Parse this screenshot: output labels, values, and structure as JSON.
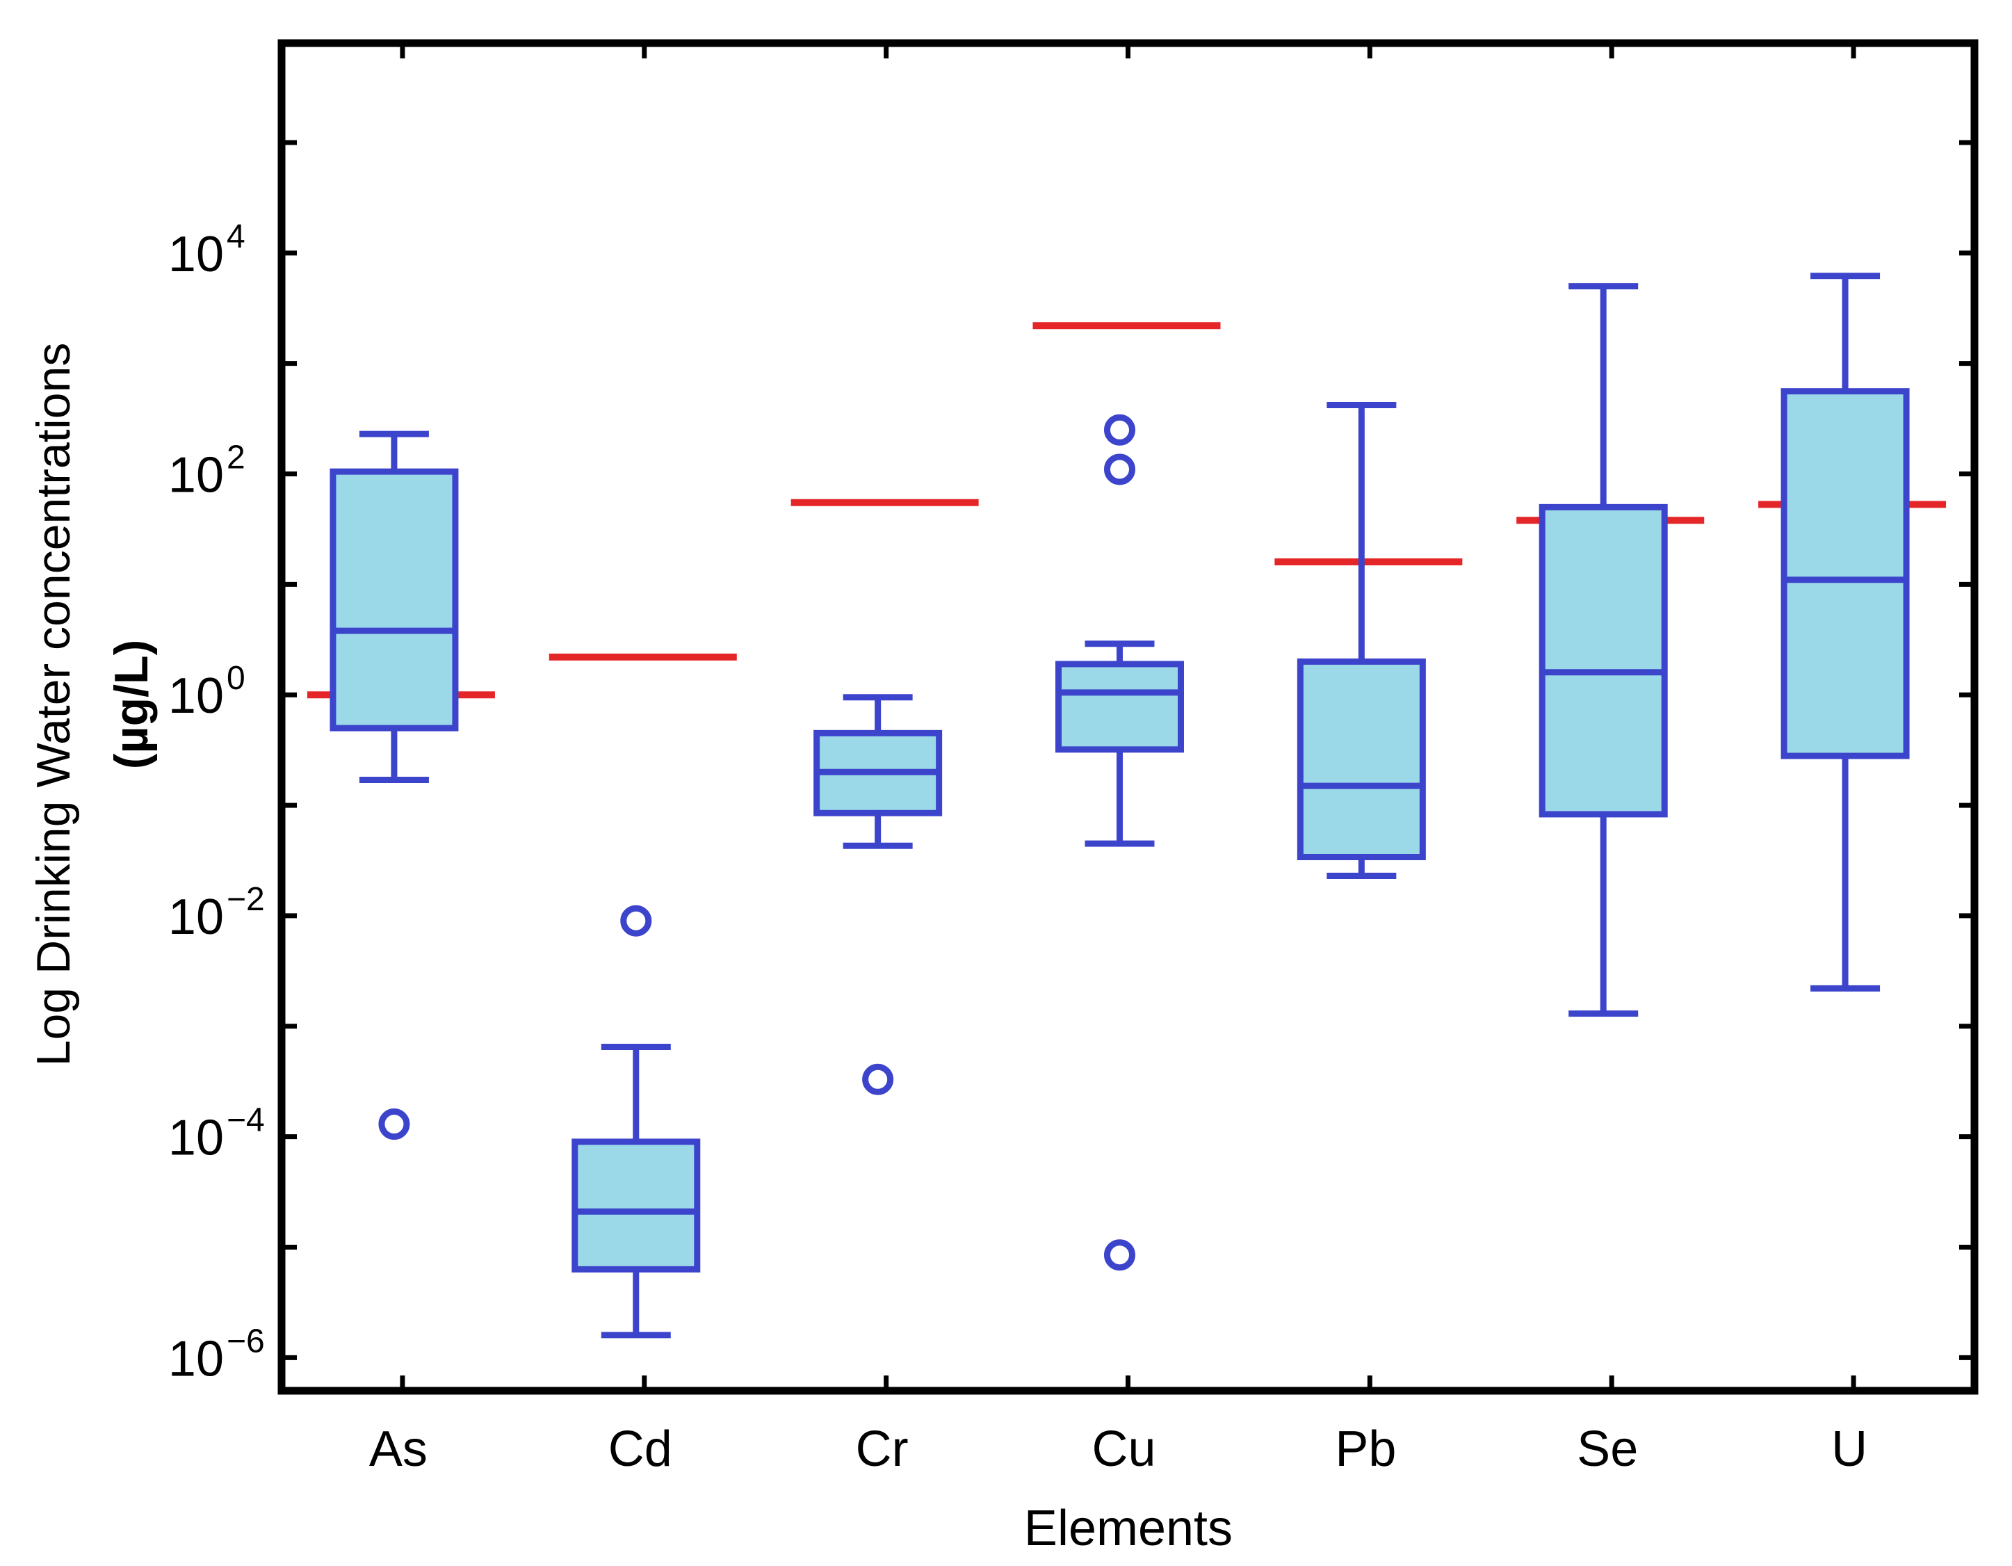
{
  "chart_data": {
    "type": "box",
    "title": "",
    "xlabel": "Elements",
    "ylabel_line1": "Log Drinking Water concentrations",
    "ylabel_line2": "(µg/L)",
    "yscale": "log10",
    "ylim_exponents": [
      -6.3,
      5.9
    ],
    "ytick_exponents": [
      4,
      2,
      0,
      -2,
      -4,
      -6
    ],
    "ytick_base": "10",
    "ytick_labels": [
      "4",
      "2",
      "0",
      "−2",
      "−4",
      "−6"
    ],
    "categories": [
      "As",
      "Cd",
      "Cr",
      "Cu",
      "Pb",
      "Se",
      "U"
    ],
    "boxes": [
      {
        "name": "As",
        "whisker_low": 0.17,
        "q1": 0.5,
        "median": 3.8,
        "q3": 105,
        "whisker_high": 230,
        "outliers": [
          0.00013
        ],
        "guideline": 1.0
      },
      {
        "name": "Cd",
        "whisker_low": 1.6e-06,
        "q1": 6.3e-06,
        "median": 2.1e-05,
        "q3": 9e-05,
        "whisker_high": 0.00065,
        "outliers": [
          0.009
        ],
        "guideline": 2.2
      },
      {
        "name": "Cr",
        "whisker_low": 0.043,
        "q1": 0.085,
        "median": 0.2,
        "q3": 0.45,
        "whisker_high": 0.95,
        "outliers": [
          0.00033
        ],
        "guideline": 55
      },
      {
        "name": "Cu",
        "whisker_low": 0.045,
        "q1": 0.32,
        "median": 1.05,
        "q3": 1.9,
        "whisker_high": 2.9,
        "outliers": [
          110,
          250,
          8.5e-06
        ],
        "guideline": 2200
      },
      {
        "name": "Pb",
        "whisker_low": 0.023,
        "q1": 0.034,
        "median": 0.15,
        "q3": 2.0,
        "whisker_high": 420,
        "outliers": [],
        "guideline": 16
      },
      {
        "name": "Se",
        "whisker_low": 0.0013,
        "q1": 0.083,
        "median": 1.6,
        "q3": 50,
        "whisker_high": 5000,
        "outliers": [],
        "guideline": 38
      },
      {
        "name": "U",
        "whisker_low": 0.0022,
        "q1": 0.28,
        "median": 11,
        "q3": 560,
        "whisker_high": 6200,
        "outliers": [],
        "guideline": 53
      }
    ],
    "colors": {
      "box_fill": "#9bd8e8",
      "box_stroke": "#3d44cc",
      "guideline": "#e52628",
      "axis": "#000000"
    }
  }
}
